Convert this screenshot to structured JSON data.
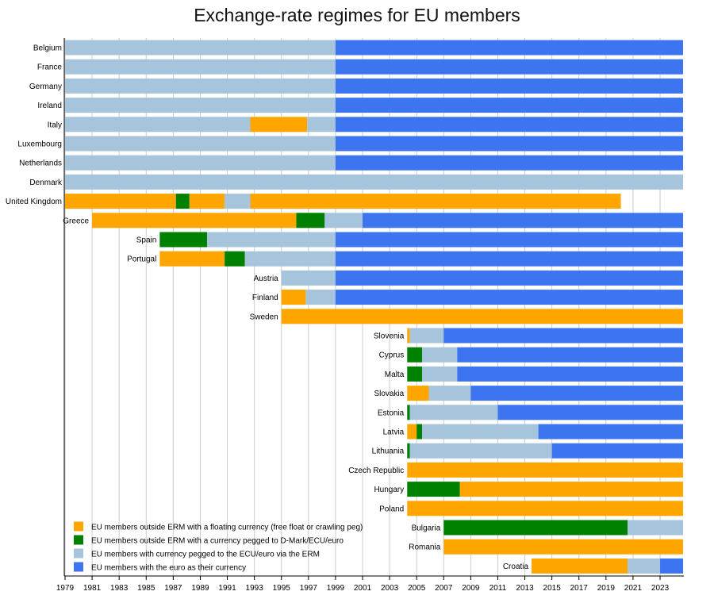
{
  "chart_data": {
    "type": "bar",
    "subtype": "horizontal-timeline",
    "title": "Exchange-rate regimes for EU members",
    "x_range": [
      1979,
      2024.7
    ],
    "x_ticks": [
      "1979",
      "1981",
      "1983",
      "1985",
      "1987",
      "1989",
      "1991",
      "1993",
      "1995",
      "1997",
      "1999",
      "2001",
      "2003",
      "2005",
      "2007",
      "2009",
      "2011",
      "2013",
      "2015",
      "2017",
      "2019",
      "2021",
      "2023"
    ],
    "grid": true,
    "legend_position": "bottom-left",
    "categories": [
      {
        "key": "floating",
        "label": "EU members outside ERM with a floating currency (free float or crawling peg)",
        "color": "#FFA500"
      },
      {
        "key": "pegged",
        "label": "EU members outside ERM with a currency pegged to D-Mark/ECU/euro",
        "color": "#008000"
      },
      {
        "key": "erm",
        "label": "EU members with currency pegged to the ECU/euro via the ERM",
        "color": "#A6C4DC"
      },
      {
        "key": "euro",
        "label": "EU members with the euro as their currency",
        "color": "#3D74F0"
      }
    ],
    "countries": [
      {
        "name": "Belgium",
        "label_side": "left",
        "segments": [
          [
            "erm",
            1979,
            1999
          ],
          [
            "euro",
            1999,
            2024.7
          ]
        ]
      },
      {
        "name": "France",
        "label_side": "left",
        "segments": [
          [
            "erm",
            1979,
            1999
          ],
          [
            "euro",
            1999,
            2024.7
          ]
        ]
      },
      {
        "name": "Germany",
        "label_side": "left",
        "segments": [
          [
            "erm",
            1979,
            1999
          ],
          [
            "euro",
            1999,
            2024.7
          ]
        ]
      },
      {
        "name": "Ireland",
        "label_side": "left",
        "segments": [
          [
            "erm",
            1979,
            1999
          ],
          [
            "euro",
            1999,
            2024.7
          ]
        ]
      },
      {
        "name": "Italy",
        "label_side": "left",
        "segments": [
          [
            "erm",
            1979,
            1992.7
          ],
          [
            "floating",
            1992.7,
            1996.9
          ],
          [
            "erm",
            1996.9,
            1999
          ],
          [
            "euro",
            1999,
            2024.7
          ]
        ]
      },
      {
        "name": "Luxembourg",
        "label_side": "left",
        "segments": [
          [
            "erm",
            1979,
            1999
          ],
          [
            "euro",
            1999,
            2024.7
          ]
        ]
      },
      {
        "name": "Netherlands",
        "label_side": "left",
        "segments": [
          [
            "erm",
            1979,
            1999
          ],
          [
            "euro",
            1999,
            2024.7
          ]
        ]
      },
      {
        "name": "Denmark",
        "label_side": "left",
        "segments": [
          [
            "erm",
            1979,
            2024.7
          ]
        ]
      },
      {
        "name": "United Kingdom",
        "label_side": "left",
        "segments": [
          [
            "floating",
            1979,
            1987.2
          ],
          [
            "pegged",
            1987.2,
            1988.2
          ],
          [
            "floating",
            1988.2,
            1990.8
          ],
          [
            "erm",
            1990.8,
            1992.7
          ],
          [
            "floating",
            1992.7,
            2020.1
          ]
        ]
      },
      {
        "name": "Greece",
        "label_side": "left",
        "segments": [
          [
            "floating",
            1981,
            1996.1
          ],
          [
            "pegged",
            1996.1,
            1998.2
          ],
          [
            "erm",
            1998.2,
            2001
          ],
          [
            "euro",
            2001,
            2024.7
          ]
        ]
      },
      {
        "name": "Spain",
        "label_side": "left",
        "segments": [
          [
            "pegged",
            1986,
            1989.5
          ],
          [
            "erm",
            1989.5,
            1999
          ],
          [
            "euro",
            1999,
            2024.7
          ]
        ]
      },
      {
        "name": "Portugal",
        "label_side": "left",
        "segments": [
          [
            "floating",
            1986,
            1990.8
          ],
          [
            "pegged",
            1990.8,
            1992.3
          ],
          [
            "erm",
            1992.3,
            1999
          ],
          [
            "euro",
            1999,
            2024.7
          ]
        ]
      },
      {
        "name": "Austria",
        "label_side": "left",
        "segments": [
          [
            "erm",
            1995,
            1999
          ],
          [
            "euro",
            1999,
            2024.7
          ]
        ]
      },
      {
        "name": "Finland",
        "label_side": "left",
        "segments": [
          [
            "floating",
            1995,
            1996.8
          ],
          [
            "erm",
            1996.8,
            1999
          ],
          [
            "euro",
            1999,
            2024.7
          ]
        ]
      },
      {
        "name": "Sweden",
        "label_side": "left",
        "segments": [
          [
            "floating",
            1995,
            2024.7
          ]
        ]
      },
      {
        "name": "Slovenia",
        "label_side": "left",
        "segments": [
          [
            "floating",
            2004.3,
            2004.5
          ],
          [
            "erm",
            2004.5,
            2007
          ],
          [
            "euro",
            2007,
            2024.7
          ]
        ]
      },
      {
        "name": "Cyprus",
        "label_side": "left",
        "segments": [
          [
            "pegged",
            2004.3,
            2005.4
          ],
          [
            "erm",
            2005.4,
            2008
          ],
          [
            "euro",
            2008,
            2024.7
          ]
        ]
      },
      {
        "name": "Malta",
        "label_side": "left",
        "segments": [
          [
            "pegged",
            2004.3,
            2005.4
          ],
          [
            "erm",
            2005.4,
            2008
          ],
          [
            "euro",
            2008,
            2024.7
          ]
        ]
      },
      {
        "name": "Slovakia",
        "label_side": "left",
        "segments": [
          [
            "floating",
            2004.3,
            2005.9
          ],
          [
            "erm",
            2005.9,
            2009
          ],
          [
            "euro",
            2009,
            2024.7
          ]
        ]
      },
      {
        "name": "Estonia",
        "label_side": "left",
        "segments": [
          [
            "pegged",
            2004.3,
            2004.5
          ],
          [
            "erm",
            2004.5,
            2011
          ],
          [
            "euro",
            2011,
            2024.7
          ]
        ]
      },
      {
        "name": "Latvia",
        "label_side": "left",
        "segments": [
          [
            "floating",
            2004.3,
            2005
          ],
          [
            "pegged",
            2005,
            2005.4
          ],
          [
            "erm",
            2005.4,
            2014
          ],
          [
            "euro",
            2014,
            2024.7
          ]
        ]
      },
      {
        "name": "Lithuania",
        "label_side": "left",
        "segments": [
          [
            "pegged",
            2004.3,
            2004.5
          ],
          [
            "erm",
            2004.5,
            2015
          ],
          [
            "euro",
            2015,
            2024.7
          ]
        ]
      },
      {
        "name": "Czech Republic",
        "label_side": "left",
        "segments": [
          [
            "floating",
            2004.3,
            2024.7
          ]
        ]
      },
      {
        "name": "Hungary",
        "label_side": "left",
        "segments": [
          [
            "pegged",
            2004.3,
            2008.2
          ],
          [
            "floating",
            2008.2,
            2024.7
          ]
        ]
      },
      {
        "name": "Poland",
        "label_side": "left",
        "segments": [
          [
            "floating",
            2004.3,
            2024.7
          ]
        ]
      },
      {
        "name": "Bulgaria",
        "label_side": "left",
        "segments": [
          [
            "pegged",
            2007,
            2020.6
          ],
          [
            "erm",
            2020.6,
            2024.7
          ]
        ]
      },
      {
        "name": "Romania",
        "label_side": "left",
        "segments": [
          [
            "floating",
            2007,
            2024.7
          ]
        ]
      },
      {
        "name": "Croatia",
        "label_side": "left",
        "segments": [
          [
            "floating",
            2013.5,
            2020.6
          ],
          [
            "erm",
            2020.6,
            2023
          ],
          [
            "euro",
            2023,
            2024.7
          ]
        ]
      }
    ]
  }
}
